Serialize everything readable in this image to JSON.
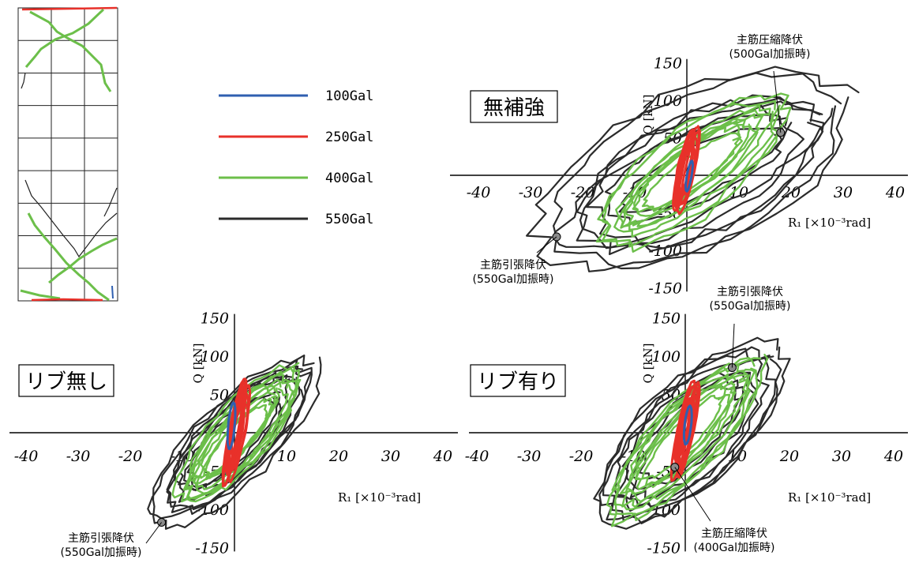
{
  "chart_data": [
    {
      "type": "line",
      "panel_label": "無補強",
      "xlabel": "R₁ [×10⁻³rad]",
      "ylabel": "Q [kN]",
      "xlim": [
        -40,
        40
      ],
      "ylim": [
        -150,
        150
      ],
      "x_ticks": [
        "-40",
        "-30",
        "-20",
        "-10",
        "10",
        "20",
        "30",
        "40"
      ],
      "y_ticks": [
        "150",
        "100",
        "50",
        "-50",
        "-100",
        "-150"
      ],
      "series": [
        {
          "name": "100Gal",
          "color": "#2f5fb0",
          "x_range": [
            -0.5,
            0.5
          ],
          "y_range": [
            -20,
            20
          ]
        },
        {
          "name": "250Gal",
          "color": "#e8312a",
          "x_range": [
            -1.8,
            1.8
          ],
          "y_range": [
            -50,
            65
          ]
        },
        {
          "name": "400Gal",
          "color": "#6cbf4a",
          "x_range": [
            -16,
            18
          ],
          "y_range": [
            -85,
            95
          ]
        },
        {
          "name": "550Gal",
          "color": "#2b2b2b",
          "x_range": [
            -27,
            31
          ],
          "y_range": [
            -90,
            100
          ]
        }
      ],
      "annotations": [
        {
          "lines": [
            "主筋圧縮降伏",
            "(500Gal加振時)"
          ],
          "x": 18,
          "y": 57
        },
        {
          "lines": [
            "主筋引張降伏",
            "(550Gal加振時)"
          ],
          "x": -25,
          "y": -82
        }
      ]
    },
    {
      "type": "line",
      "panel_label": "リブ無し",
      "xlabel": "R₁ [×10⁻³rad]",
      "ylabel": "Q [kN]",
      "xlim": [
        -40,
        40
      ],
      "ylim": [
        -150,
        150
      ],
      "x_ticks": [
        "-40",
        "-30",
        "-20",
        "-10",
        "10",
        "20",
        "30",
        "40"
      ],
      "y_ticks": [
        "150",
        "100",
        "50",
        "-50",
        "-100",
        "-150"
      ],
      "series": [
        {
          "name": "100Gal",
          "color": "#2f5fb0",
          "x_range": [
            -0.4,
            0.4
          ],
          "y_range": [
            -25,
            35
          ]
        },
        {
          "name": "250Gal",
          "color": "#e8312a",
          "x_range": [
            -1.5,
            2.5
          ],
          "y_range": [
            -70,
            70
          ]
        },
        {
          "name": "400Gal",
          "color": "#6cbf4a",
          "x_range": [
            -10,
            12
          ],
          "y_range": [
            -90,
            80
          ]
        },
        {
          "name": "550Gal",
          "color": "#2b2b2b",
          "x_range": [
            -15,
            15
          ],
          "y_range": [
            -110,
            95
          ]
        }
      ],
      "annotations": [
        {
          "lines": [
            "主筋引張降伏",
            "(550Gal加振時)"
          ],
          "x": -14,
          "y": -117
        }
      ]
    },
    {
      "type": "line",
      "panel_label": "リブ有り",
      "xlabel": "R₁ [×10⁻³rad]",
      "ylabel": "Q [kN]",
      "xlim": [
        -40,
        40
      ],
      "ylim": [
        -150,
        150
      ],
      "x_ticks": [
        "-40",
        "-30",
        "-20",
        "-10",
        "10",
        "20",
        "30",
        "40"
      ],
      "y_ticks": [
        "150",
        "100",
        "50",
        "-50",
        "-100",
        "-150"
      ],
      "series": [
        {
          "name": "100Gal",
          "color": "#2f5fb0",
          "x_range": [
            -0.4,
            0.4
          ],
          "y_range": [
            -20,
            30
          ]
        },
        {
          "name": "250Gal",
          "color": "#e8312a",
          "x_range": [
            -2,
            2
          ],
          "y_range": [
            -60,
            70
          ]
        },
        {
          "name": "400Gal",
          "color": "#6cbf4a",
          "x_range": [
            -14,
            14
          ],
          "y_range": [
            -110,
            95
          ]
        },
        {
          "name": "550Gal",
          "color": "#2b2b2b",
          "x_range": [
            -16,
            17
          ],
          "y_range": [
            -115,
            105
          ]
        }
      ],
      "annotations": [
        {
          "lines": [
            "主筋引張降伏",
            "(550Gal加振時)"
          ],
          "x": 9,
          "y": 85
        },
        {
          "lines": [
            "主筋圧縮降伏",
            "(400Gal加振時)"
          ],
          "x": -2,
          "y": -45
        }
      ]
    }
  ],
  "legend": [
    {
      "label": "100Gal",
      "color": "#2f5fb0"
    },
    {
      "label": "250Gal",
      "color": "#e8312a"
    },
    {
      "label": "400Gal",
      "color": "#6cbf4a"
    },
    {
      "label": "550Gal",
      "color": "#2b2b2b"
    }
  ],
  "marker_color": "#8a8a8a"
}
